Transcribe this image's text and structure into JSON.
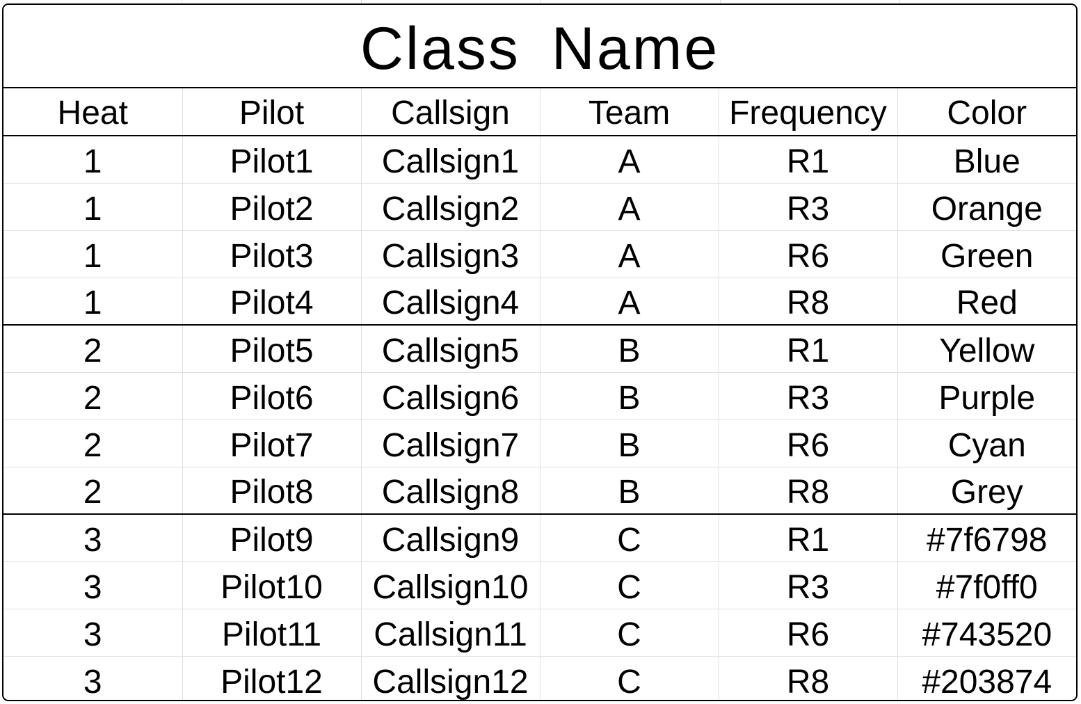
{
  "title": "Class Name",
  "columns": [
    "Heat",
    "Pilot",
    "Callsign",
    "Team",
    "Frequency",
    "Color"
  ],
  "rows": [
    {
      "heat": "1",
      "pilot": "Pilot1",
      "callsign": "Callsign1",
      "team": "A",
      "frequency": "R1",
      "color": "Blue"
    },
    {
      "heat": "1",
      "pilot": "Pilot2",
      "callsign": "Callsign2",
      "team": "A",
      "frequency": "R3",
      "color": "Orange"
    },
    {
      "heat": "1",
      "pilot": "Pilot3",
      "callsign": "Callsign3",
      "team": "A",
      "frequency": "R6",
      "color": "Green"
    },
    {
      "heat": "1",
      "pilot": "Pilot4",
      "callsign": "Callsign4",
      "team": "A",
      "frequency": "R8",
      "color": "Red"
    },
    {
      "heat": "2",
      "pilot": "Pilot5",
      "callsign": "Callsign5",
      "team": "B",
      "frequency": "R1",
      "color": "Yellow"
    },
    {
      "heat": "2",
      "pilot": "Pilot6",
      "callsign": "Callsign6",
      "team": "B",
      "frequency": "R3",
      "color": "Purple"
    },
    {
      "heat": "2",
      "pilot": "Pilot7",
      "callsign": "Callsign7",
      "team": "B",
      "frequency": "R6",
      "color": "Cyan"
    },
    {
      "heat": "2",
      "pilot": "Pilot8",
      "callsign": "Callsign8",
      "team": "B",
      "frequency": "R8",
      "color": "Grey"
    },
    {
      "heat": "3",
      "pilot": "Pilot9",
      "callsign": "Callsign9",
      "team": "C",
      "frequency": "R1",
      "color": "#7f6798"
    },
    {
      "heat": "3",
      "pilot": "Pilot10",
      "callsign": "Callsign10",
      "team": "C",
      "frequency": "R3",
      "color": "#7f0ff0"
    },
    {
      "heat": "3",
      "pilot": "Pilot11",
      "callsign": "Callsign11",
      "team": "C",
      "frequency": "R6",
      "color": "#743520"
    },
    {
      "heat": "3",
      "pilot": "Pilot12",
      "callsign": "Callsign12",
      "team": "C",
      "frequency": "R8",
      "color": "#203874"
    }
  ],
  "colors": {
    "border": "#000000",
    "gridline": "#e0e0e0",
    "background": "#ffffff",
    "text": "#000000"
  }
}
